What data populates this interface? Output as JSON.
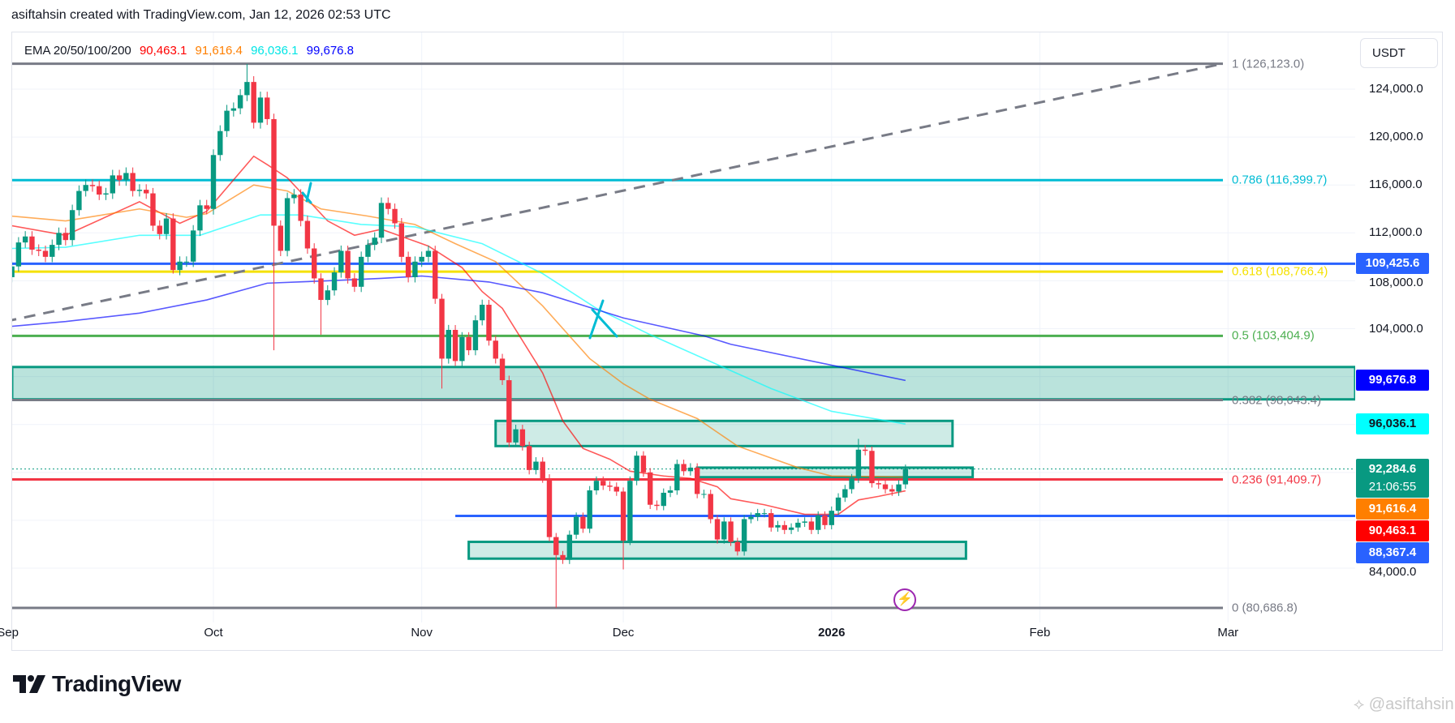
{
  "header": {
    "text": "asiftahsin created with TradingView.com, Jan 12, 2026 02:53 UTC"
  },
  "legend": {
    "label": "EMA 20/50/100/200",
    "ema20": "90,463.1",
    "ema50": "91,616.4",
    "ema100": "96,036.1",
    "ema200": "99,676.8"
  },
  "axis": {
    "currency_button": "USDT"
  },
  "brand": {
    "logo": "TradingView",
    "watermark": "@asiftahsin",
    "watermark_icon": "binance-diamond-icon"
  },
  "colors": {
    "up": "#089981",
    "down": "#f23645",
    "ema20": "#ff0000",
    "ema50": "#ff7f00",
    "ema100": "#00ffff",
    "ema200": "#0000ff",
    "hline": "#2962ff",
    "zone": "#089981"
  },
  "chart_data": {
    "type": "candlestick",
    "title": "",
    "unit_note": "prices in thousands USDT, one candle per day starting Sep 1 2025",
    "first_open_k": 108.3,
    "closes_k": [
      109.2,
      111.2,
      111.7,
      110.6,
      110.5,
      110.0,
      111.0,
      112.0,
      111.4,
      113.9,
      115.5,
      116.0,
      115.9,
      115.2,
      115.3,
      116.8,
      116.4,
      117.0,
      115.5,
      115.6,
      115.3,
      112.6,
      111.9,
      113.2,
      108.9,
      109.6,
      109.6,
      112.2,
      114.3,
      114.0,
      118.5,
      120.5,
      122.2,
      122.4,
      123.5,
      124.6,
      121.2,
      123.3,
      121.5,
      112.6,
      110.5,
      114.9,
      115.2,
      113.0,
      110.7,
      108.2,
      106.4,
      107.2,
      108.7,
      110.5,
      108.2,
      107.5,
      110.0,
      111.0,
      111.6,
      114.5,
      114.0,
      112.8,
      110.0,
      108.3,
      109.6,
      110.0,
      110.5,
      106.5,
      101.5,
      103.9,
      101.3,
      103.3,
      102.2,
      104.7,
      106.0,
      103.0,
      101.5,
      99.7,
      94.5,
      95.6,
      94.2,
      92.2,
      92.9,
      91.5,
      86.6,
      85.1,
      84.7,
      86.8,
      88.3,
      87.3,
      90.5,
      91.3,
      90.9,
      90.8,
      90.4,
      86.3,
      91.3,
      93.4,
      92.0,
      89.3,
      89.2,
      90.3,
      90.5,
      92.7,
      92.1,
      92.4,
      90.2,
      90.2,
      88.1,
      86.4,
      87.9,
      86.2,
      85.4,
      88.1,
      88.3,
      88.6,
      88.6,
      87.4,
      87.6,
      87.2,
      87.4,
      87.8,
      87.9,
      87.2,
      88.4,
      87.6,
      88.8,
      89.9,
      90.6,
      91.5,
      93.9,
      93.8,
      91.1,
      91.0,
      90.6,
      90.4,
      91.0,
      92.2846
    ],
    "extreme_overrides_k": {
      "24": {
        "l": 108.6
      },
      "35": {
        "h": 126.1
      },
      "39": {
        "l": 102.2
      },
      "46": {
        "l": 103.5
      },
      "64": {
        "l": 99.0
      },
      "81": {
        "l": 80.7
      },
      "91": {
        "l": 83.9
      },
      "126": {
        "h": 94.8
      }
    },
    "ema": [
      {
        "name": "EMA 20",
        "color": "#ff0000",
        "points": [
          [
            0,
            112.6
          ],
          [
            8,
            111.8
          ],
          [
            19,
            114.6
          ],
          [
            25,
            112.8
          ],
          [
            29,
            113.8
          ],
          [
            36,
            118.4
          ],
          [
            38,
            117.7
          ],
          [
            41,
            116.6
          ],
          [
            47,
            113.0
          ],
          [
            51,
            111.8
          ],
          [
            55,
            112.3
          ],
          [
            60,
            111.3
          ],
          [
            62,
            110.9
          ],
          [
            67,
            109.1
          ],
          [
            70,
            107.1
          ],
          [
            73,
            105.7
          ],
          [
            79,
            100.3
          ],
          [
            82,
            96.3
          ],
          [
            85,
            94.0
          ],
          [
            89,
            93.1
          ],
          [
            92,
            92.1
          ],
          [
            97,
            91.7
          ],
          [
            101,
            91.5
          ],
          [
            105,
            90.8
          ],
          [
            107,
            89.8
          ],
          [
            112,
            89.3
          ],
          [
            118,
            88.5
          ],
          [
            123,
            88.5
          ],
          [
            126,
            89.7
          ],
          [
            129,
            90.0
          ],
          [
            133,
            90.4631
          ]
        ]
      },
      {
        "name": "EMA 50",
        "color": "#ff7f00",
        "points": [
          [
            0,
            113.4
          ],
          [
            8,
            113.0
          ],
          [
            19,
            114.0
          ],
          [
            26,
            113.3
          ],
          [
            29,
            113.6
          ],
          [
            36,
            116.0
          ],
          [
            41,
            115.5
          ],
          [
            46,
            114.0
          ],
          [
            53,
            113.4
          ],
          [
            60,
            112.7
          ],
          [
            66,
            111.1
          ],
          [
            72,
            109.6
          ],
          [
            79,
            105.9
          ],
          [
            86,
            101.5
          ],
          [
            91,
            99.4
          ],
          [
            95,
            98.1
          ],
          [
            102,
            96.5
          ],
          [
            108,
            94.2
          ],
          [
            117,
            92.4
          ],
          [
            122,
            91.7
          ],
          [
            133,
            91.6164
          ]
        ]
      },
      {
        "name": "EMA 100",
        "color": "#00ffff",
        "points": [
          [
            0,
            110.7
          ],
          [
            8,
            110.8
          ],
          [
            19,
            111.8
          ],
          [
            28,
            111.8
          ],
          [
            37,
            113.5
          ],
          [
            43,
            113.5
          ],
          [
            52,
            112.7
          ],
          [
            60,
            112.5
          ],
          [
            70,
            111.1
          ],
          [
            79,
            108.6
          ],
          [
            87,
            105.7
          ],
          [
            95,
            103.5
          ],
          [
            107,
            100.5
          ],
          [
            113,
            99.0
          ],
          [
            122,
            97.1
          ],
          [
            133,
            96.0361
          ]
        ]
      },
      {
        "name": "EMA 200",
        "color": "#0000ff",
        "points": [
          [
            0,
            104.2
          ],
          [
            8,
            104.6
          ],
          [
            19,
            105.3
          ],
          [
            29,
            106.4
          ],
          [
            38,
            107.8
          ],
          [
            47,
            108.0
          ],
          [
            55,
            108.2
          ],
          [
            61,
            108.4
          ],
          [
            71,
            107.9
          ],
          [
            79,
            107.0
          ],
          [
            91,
            104.9
          ],
          [
            103,
            103.4
          ],
          [
            107,
            102.7
          ],
          [
            133,
            99.6768
          ]
        ]
      }
    ],
    "fib_levels": [
      {
        "ratio": "1",
        "price": 126123.0,
        "label": "1 (126,123.0)",
        "color": "#787b86"
      },
      {
        "ratio": "0.786",
        "price": 116399.7,
        "label": "0.786 (116,399.7)",
        "color": "#00bcd4"
      },
      {
        "ratio": "0.618",
        "price": 108766.4,
        "label": "0.618 (108,766.4)",
        "color": "#f5e100"
      },
      {
        "ratio": "0.5",
        "price": 103404.9,
        "label": "0.5 (103,404.9)",
        "color": "#4caf50"
      },
      {
        "ratio": "0.382",
        "price": 98043.4,
        "label": "0.382 (98,043.4)",
        "color": "#787b86"
      },
      {
        "ratio": "0.236",
        "price": 91409.7,
        "label": "0.236 (91,409.7)",
        "color": "#f23645"
      },
      {
        "ratio": "0",
        "price": 80686.8,
        "label": "0 (80,686.8)",
        "color": "#787b86"
      }
    ],
    "horizontal_lines": [
      {
        "price": 109425.6,
        "from_day": -1,
        "color": "#2962ff"
      },
      {
        "price": 88367.4,
        "from_day": 66,
        "color": "#2962ff"
      }
    ],
    "zones": [
      {
        "top": 100800,
        "bottom": 98100,
        "from_day": -1,
        "to_day": 200
      },
      {
        "top": 96300,
        "bottom": 94200,
        "from_day": 72,
        "to_day": 140
      },
      {
        "top": 92400,
        "bottom": 91600,
        "from_day": 102,
        "to_day": 143
      },
      {
        "top": 86200,
        "bottom": 84800,
        "from_day": 68,
        "to_day": 142
      }
    ],
    "trendline": {
      "from": [
        -1,
        104600
      ],
      "to": [
        180,
        126100
      ],
      "style": "dashed"
    },
    "y_ticks": [
      {
        "value": 124000,
        "label": "124,000.0"
      },
      {
        "value": 120000,
        "label": "120,000.0"
      },
      {
        "value": 116000,
        "label": "116,000.0"
      },
      {
        "value": 112000,
        "label": "112,000.0"
      },
      {
        "value": 108000,
        "label": "108,000.0"
      },
      {
        "value": 104000,
        "label": "104,000.0"
      },
      {
        "value": 84000,
        "label": "84,000.0"
      }
    ],
    "x_ticks": [
      {
        "day": -0.6,
        "label": "Sep",
        "bold": false
      },
      {
        "day": 30,
        "label": "Oct",
        "bold": false
      },
      {
        "day": 61,
        "label": "Nov",
        "bold": false
      },
      {
        "day": 91,
        "label": "Dec",
        "bold": false
      },
      {
        "day": 122,
        "label": "2026",
        "bold": true
      },
      {
        "day": 153,
        "label": "Feb",
        "bold": false
      },
      {
        "day": 181,
        "label": "Mar",
        "bold": false
      }
    ],
    "price_tags": [
      {
        "value": 109425.6,
        "label": "109,425.6",
        "bg": "#2962ff",
        "fg": "#ffffff"
      },
      {
        "value": 99676.8,
        "label": "99,676.8",
        "bg": "#0000ff",
        "fg": "#ffffff"
      },
      {
        "value": 96036.1,
        "label": "96,036.1",
        "bg": "#00ffff",
        "fg": "#131722"
      },
      {
        "value": 91616.4,
        "label": "91,616.4",
        "bg": "#ff7f00",
        "fg": "#ffffff"
      },
      {
        "value": 90463.1,
        "label": "90,463.1",
        "bg": "#ff0000",
        "fg": "#ffffff"
      },
      {
        "value": 88367.4,
        "label": "88,367.4",
        "bg": "#2962ff",
        "fg": "#ffffff"
      }
    ],
    "last_price": {
      "value": 92284.6,
      "label": "92,284.6",
      "countdown": "21:06:55"
    }
  }
}
